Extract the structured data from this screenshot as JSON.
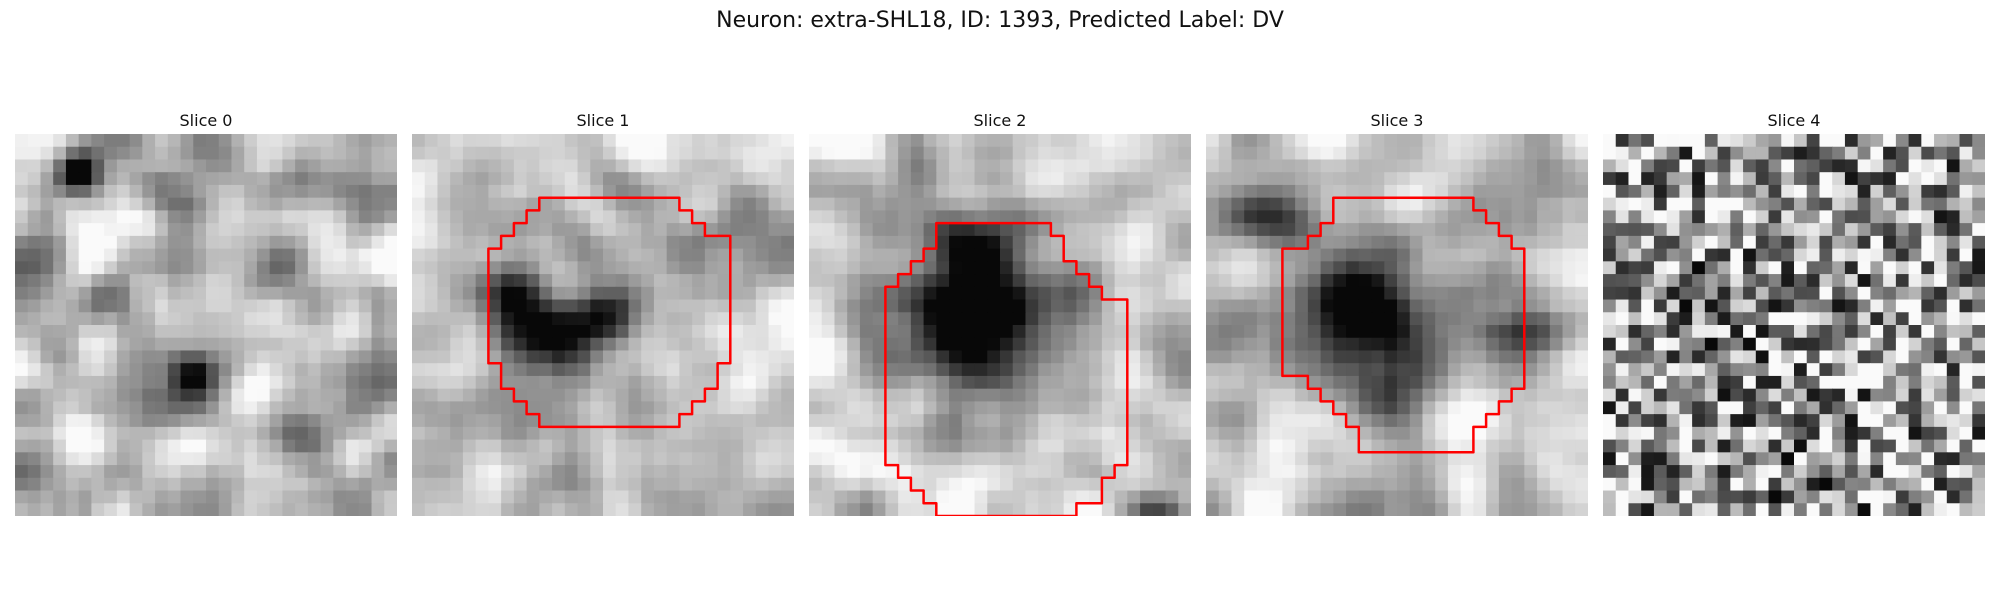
{
  "figure": {
    "title": "Neuron: extra-SHL18, ID: 1393, Predicted Label: DV",
    "colormap": "grayscale",
    "contour_color": "#ff0000",
    "grid_resolution": 30
  },
  "slices": [
    {
      "label": "Slice 0",
      "has_contour": false
    },
    {
      "label": "Slice 1",
      "has_contour": true
    },
    {
      "label": "Slice 2",
      "has_contour": true
    },
    {
      "label": "Slice 3",
      "has_contour": true
    },
    {
      "label": "Slice 4",
      "has_contour": false
    }
  ]
}
